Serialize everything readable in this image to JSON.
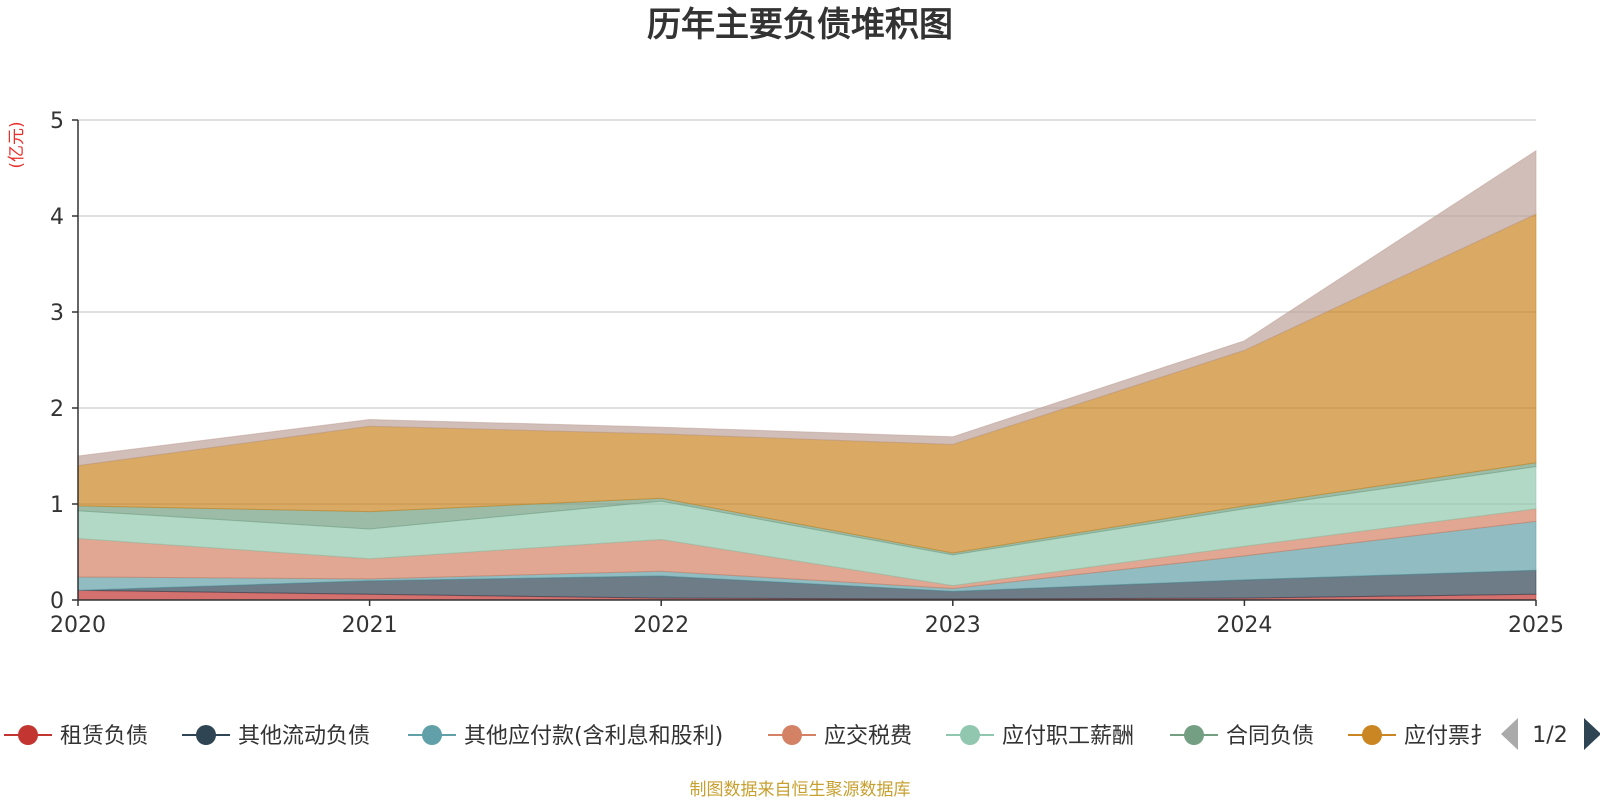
{
  "chart_data": {
    "type": "area",
    "stacked": true,
    "title": "历年主要负债堆积图",
    "ylabel": "(亿元)",
    "x": [
      "2020",
      "2021",
      "2022",
      "2023",
      "2024",
      "2025"
    ],
    "ylim": [
      0,
      5
    ],
    "yticks": [
      0,
      1,
      2,
      3,
      4,
      5
    ],
    "grid": true,
    "series": [
      {
        "name": "租赁负债",
        "color": "#c23531",
        "values": [
          0.1,
          0.06,
          0.02,
          0.01,
          0.02,
          0.06
        ]
      },
      {
        "name": "其他流动负债",
        "color": "#2f4554",
        "values": [
          0.0,
          0.14,
          0.23,
          0.08,
          0.19,
          0.25
        ]
      },
      {
        "name": "其他应付款(含利息和股利)",
        "color": "#61a0a8",
        "values": [
          0.14,
          0.02,
          0.05,
          0.03,
          0.25,
          0.51
        ]
      },
      {
        "name": "应交税费",
        "color": "#d48265",
        "values": [
          0.4,
          0.21,
          0.33,
          0.03,
          0.1,
          0.13
        ]
      },
      {
        "name": "应付职工薪酬",
        "color": "#91c7ae",
        "values": [
          0.29,
          0.31,
          0.4,
          0.32,
          0.39,
          0.44
        ]
      },
      {
        "name": "合同负债",
        "color": "#749f83",
        "values": [
          0.05,
          0.18,
          0.03,
          0.02,
          0.03,
          0.04
        ]
      },
      {
        "name": "应付票据",
        "color": "#ca8622",
        "values": [
          0.42,
          0.89,
          0.67,
          1.13,
          1.62,
          2.59
        ]
      },
      {
        "name": "",
        "color": "#bda29a",
        "values": [
          0.1,
          0.07,
          0.07,
          0.08,
          0.1,
          0.66
        ]
      }
    ],
    "legend_visible_count": 7,
    "legend_last_label_visible": "应付票扌"
  },
  "legend_page": "1/2",
  "footer": "制图数据来自恒生聚源数据库",
  "colors": {
    "axis": "#333333",
    "grid": "#cccccc",
    "unit": "#e8302c",
    "footer": "#c8a030",
    "pager_disabled": "#aaaaaa",
    "pager_active": "#2f4554"
  }
}
